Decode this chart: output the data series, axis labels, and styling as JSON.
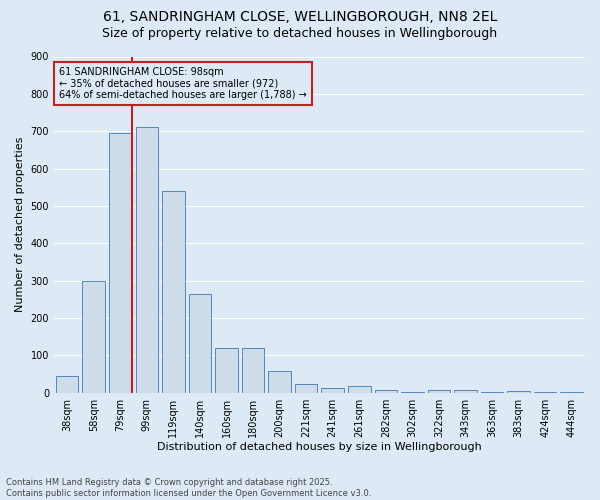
{
  "title1": "61, SANDRINGHAM CLOSE, WELLINGBOROUGH, NN8 2EL",
  "title2": "Size of property relative to detached houses in Wellingborough",
  "xlabel": "Distribution of detached houses by size in Wellingborough",
  "ylabel": "Number of detached properties",
  "categories": [
    "38sqm",
    "58sqm",
    "79sqm",
    "99sqm",
    "119sqm",
    "140sqm",
    "160sqm",
    "180sqm",
    "200sqm",
    "221sqm",
    "241sqm",
    "261sqm",
    "282sqm",
    "302sqm",
    "322sqm",
    "343sqm",
    "363sqm",
    "383sqm",
    "424sqm",
    "444sqm"
  ],
  "values": [
    45,
    300,
    695,
    710,
    540,
    265,
    120,
    120,
    57,
    22,
    13,
    17,
    7,
    3,
    8,
    8,
    3,
    4,
    3,
    3
  ],
  "bar_color": "#ccdce8",
  "bar_edge_color": "#5588bb",
  "vline_x_index": 2,
  "vline_color": "#bb2222",
  "annotation_line1": "61 SANDRINGHAM CLOSE: 98sqm",
  "annotation_line2": "← 35% of detached houses are smaller (972)",
  "annotation_line3": "64% of semi-detached houses are larger (1,788) →",
  "footer": "Contains HM Land Registry data © Crown copyright and database right 2025.\nContains public sector information licensed under the Open Government Licence v3.0.",
  "bg_color": "#ddeaf5",
  "plot_bg_color": "#ddeaf5",
  "ylim": [
    0,
    900
  ],
  "yticks": [
    0,
    100,
    200,
    300,
    400,
    500,
    600,
    700,
    800,
    900
  ],
  "grid_color": "#ffffff",
  "title1_fontsize": 10,
  "title2_fontsize": 9,
  "xlabel_fontsize": 8,
  "ylabel_fontsize": 8,
  "tick_fontsize": 7,
  "annotation_fontsize": 7,
  "footer_fontsize": 6
}
